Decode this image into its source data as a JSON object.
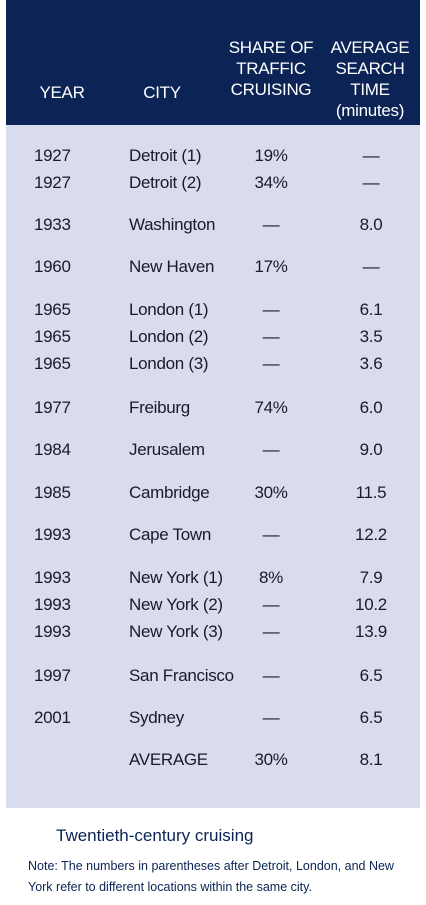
{
  "header": {
    "year": "YEAR",
    "city": "CITY",
    "share": [
      "SHARE OF",
      "TRAFFIC",
      "CRUISING"
    ],
    "avg": [
      "AVERAGE",
      "SEARCH TIME",
      "(minutes)"
    ]
  },
  "rows": [
    {
      "year": "1927",
      "city": "Detroit (1)",
      "share": "19%",
      "avg": "—"
    },
    {
      "year": "1927",
      "city": "Detroit (2)",
      "share": "34%",
      "avg": "—"
    },
    {
      "year": "1933",
      "city": "Washington",
      "share": "—",
      "avg": "8.0"
    },
    {
      "year": "1960",
      "city": "New Haven",
      "share": "17%",
      "avg": "—"
    },
    {
      "year": "1965",
      "city": "London (1)",
      "share": "—",
      "avg": "6.1"
    },
    {
      "year": "1965",
      "city": "London (2)",
      "share": "—",
      "avg": "3.5"
    },
    {
      "year": "1965",
      "city": "London (3)",
      "share": "—",
      "avg": "3.6"
    },
    {
      "year": "1977",
      "city": "Freiburg",
      "share": "74%",
      "avg": "6.0"
    },
    {
      "year": "1984",
      "city": "Jerusalem",
      "share": "—",
      "avg": "9.0"
    },
    {
      "year": "1985",
      "city": "Cambridge",
      "share": "30%",
      "avg": "11.5"
    },
    {
      "year": "1993",
      "city": "Cape Town",
      "share": "—",
      "avg": "12.2"
    },
    {
      "year": "1993",
      "city": "New York (1)",
      "share": "8%",
      "avg": "7.9"
    },
    {
      "year": "1993",
      "city": "New York (2)",
      "share": "—",
      "avg": "10.2"
    },
    {
      "year": "1993",
      "city": "New York (3)",
      "share": "—",
      "avg": "13.9"
    },
    {
      "year": "1997",
      "city": "San Francisco",
      "share": "—",
      "avg": "6.5"
    },
    {
      "year": "2001",
      "city": "Sydney",
      "share": "—",
      "avg": "6.5"
    },
    {
      "year": "",
      "city": "AVERAGE",
      "share": "30%",
      "avg": "8.1"
    }
  ],
  "caption": "Twentieth-century cruising",
  "note": "Note: The numbers in parentheses after Detroit, London, and New York refer to different locations within the same city.",
  "colors": {
    "header_bg": "#0b2455",
    "panel_bg": "#d8dced"
  }
}
